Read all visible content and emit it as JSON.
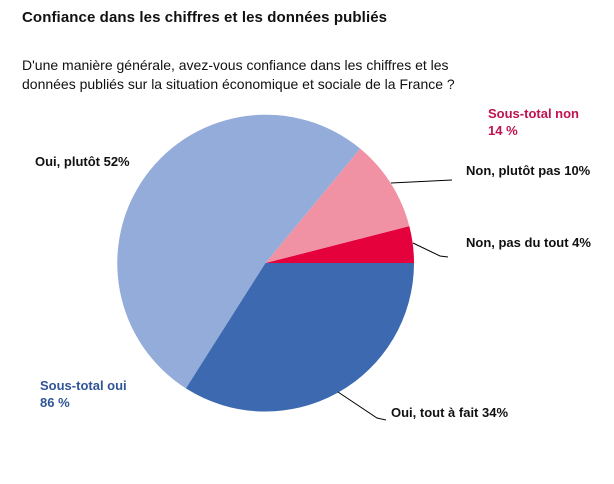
{
  "chart_data": {
    "type": "pie",
    "title": "Confiance dans les chiffres et les données publiés",
    "question": "D'une manière générale, avez-vous confiance dans les chiffres et les\ndonnées publiés sur la situation économique et sociale de la France ?",
    "start_angle_deg": 0,
    "direction": "counterclockwise",
    "legend": "none",
    "labels_position": "outside-with-leader-lines",
    "slices": [
      {
        "name": "non-pas-du-tout",
        "label": "Non, pas du tout",
        "value": 4,
        "display": "Non, pas du tout 4%",
        "color": "#E4013C"
      },
      {
        "name": "non-plutot-pas",
        "label": "Non, plutôt pas",
        "value": 10,
        "display": "Non, plutôt pas 10%",
        "color": "#F192A4"
      },
      {
        "name": "oui-plutot",
        "label": "Oui, plutôt",
        "value": 52,
        "display": "Oui, plutôt 52%",
        "color": "#94ACD9"
      },
      {
        "name": "oui-tout-a-fait",
        "label": "Oui, tout à fait",
        "value": 34,
        "display": "Oui, tout à fait 34%",
        "color": "#3D69B1"
      }
    ],
    "subtotals": [
      {
        "name": "sous-total-non",
        "label": "Sous-total non",
        "value": 14,
        "value_display": "14 %",
        "color": "#C01151"
      },
      {
        "name": "sous-total-oui",
        "label": "Sous-total oui",
        "value": 86,
        "value_display": "86 %",
        "color": "#2F5597"
      }
    ]
  }
}
